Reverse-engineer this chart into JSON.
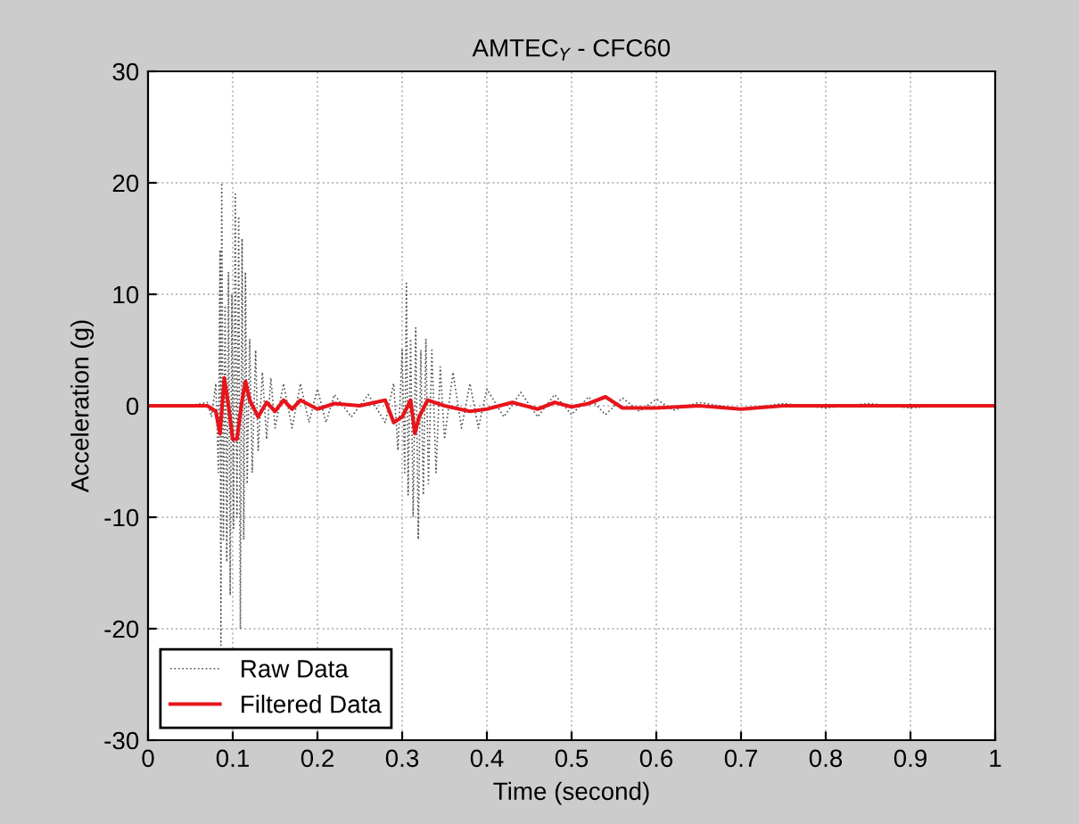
{
  "chart_data": {
    "type": "line",
    "title": "AMTEC$_{Y}$ - CFC60",
    "xlabel": "Time (second)",
    "ylabel": "Acceleration (g)",
    "xlim": [
      0,
      1
    ],
    "xticks": [
      0,
      0.1,
      0.2,
      0.3,
      0.4,
      0.5,
      0.6,
      0.7,
      0.8,
      0.9,
      1
    ],
    "ylim": [
      -30,
      30
    ],
    "yticks": [
      -30,
      -20,
      -10,
      0,
      10,
      20,
      30
    ],
    "grid": true,
    "legend": "bottom left",
    "series": [
      {
        "name": "Raw Data",
        "color": "#555555",
        "line_style": "dotted",
        "x": [
          0,
          0.05,
          0.07,
          0.075,
          0.08,
          0.083,
          0.085,
          0.086,
          0.087,
          0.089,
          0.091,
          0.093,
          0.095,
          0.097,
          0.099,
          0.101,
          0.103,
          0.105,
          0.107,
          0.109,
          0.111,
          0.113,
          0.115,
          0.117,
          0.12,
          0.123,
          0.127,
          0.13,
          0.135,
          0.14,
          0.145,
          0.15,
          0.16,
          0.17,
          0.18,
          0.19,
          0.2,
          0.21,
          0.22,
          0.24,
          0.26,
          0.28,
          0.29,
          0.295,
          0.3,
          0.303,
          0.305,
          0.307,
          0.31,
          0.313,
          0.316,
          0.319,
          0.322,
          0.325,
          0.328,
          0.331,
          0.335,
          0.34,
          0.345,
          0.35,
          0.36,
          0.37,
          0.38,
          0.39,
          0.4,
          0.42,
          0.44,
          0.46,
          0.48,
          0.5,
          0.52,
          0.54,
          0.56,
          0.58,
          0.6,
          0.62,
          0.65,
          0.7,
          0.75,
          0.8,
          0.85,
          0.9,
          0.95,
          1
        ],
        "values": [
          0,
          0,
          0.3,
          -1,
          2,
          -6,
          14,
          -21.5,
          20,
          -12,
          9,
          -14,
          12,
          -17,
          10,
          -11,
          19,
          -10,
          17,
          -20,
          15,
          -12,
          12,
          -7,
          6,
          -6,
          5,
          -4,
          3,
          -3,
          2.5,
          -2,
          2,
          -2,
          2,
          -1.5,
          1.5,
          -1.5,
          1,
          -1,
          1,
          -1.5,
          2,
          -4,
          5,
          -6,
          11,
          -8,
          6,
          -10,
          7,
          -12,
          5,
          -8,
          6,
          -7,
          5,
          -6,
          3.5,
          -3,
          3,
          -2,
          2,
          -2,
          1.5,
          -1,
          1.2,
          -1,
          1,
          -0.8,
          0.8,
          -0.8,
          0.7,
          -0.5,
          0.6,
          -0.4,
          0.3,
          -0.3,
          0.2,
          -0.2,
          0.2,
          -0.2,
          0.1,
          0
        ]
      },
      {
        "name": "Filtered Data",
        "color": "#e8141b",
        "line_style": "solid",
        "x": [
          0,
          0.07,
          0.08,
          0.085,
          0.09,
          0.095,
          0.1,
          0.105,
          0.11,
          0.115,
          0.12,
          0.13,
          0.14,
          0.15,
          0.16,
          0.17,
          0.18,
          0.2,
          0.22,
          0.25,
          0.28,
          0.29,
          0.3,
          0.31,
          0.315,
          0.32,
          0.33,
          0.35,
          0.38,
          0.4,
          0.43,
          0.46,
          0.48,
          0.5,
          0.52,
          0.54,
          0.56,
          0.6,
          0.65,
          0.7,
          0.75,
          0.8,
          0.9,
          1
        ],
        "values": [
          0,
          0,
          -0.5,
          -2.5,
          2.5,
          0,
          -3,
          -3,
          0,
          2.2,
          0.5,
          -1,
          0.3,
          -0.5,
          0.5,
          -0.3,
          0.5,
          -0.3,
          0.2,
          0,
          0.5,
          -1.5,
          -1,
          0.5,
          -2.5,
          -1,
          0.5,
          0,
          -0.5,
          -0.3,
          0.3,
          -0.3,
          0.3,
          -0.1,
          0.2,
          0.8,
          -0.2,
          -0.2,
          0,
          -0.3,
          0,
          0,
          0,
          0
        ]
      }
    ]
  }
}
